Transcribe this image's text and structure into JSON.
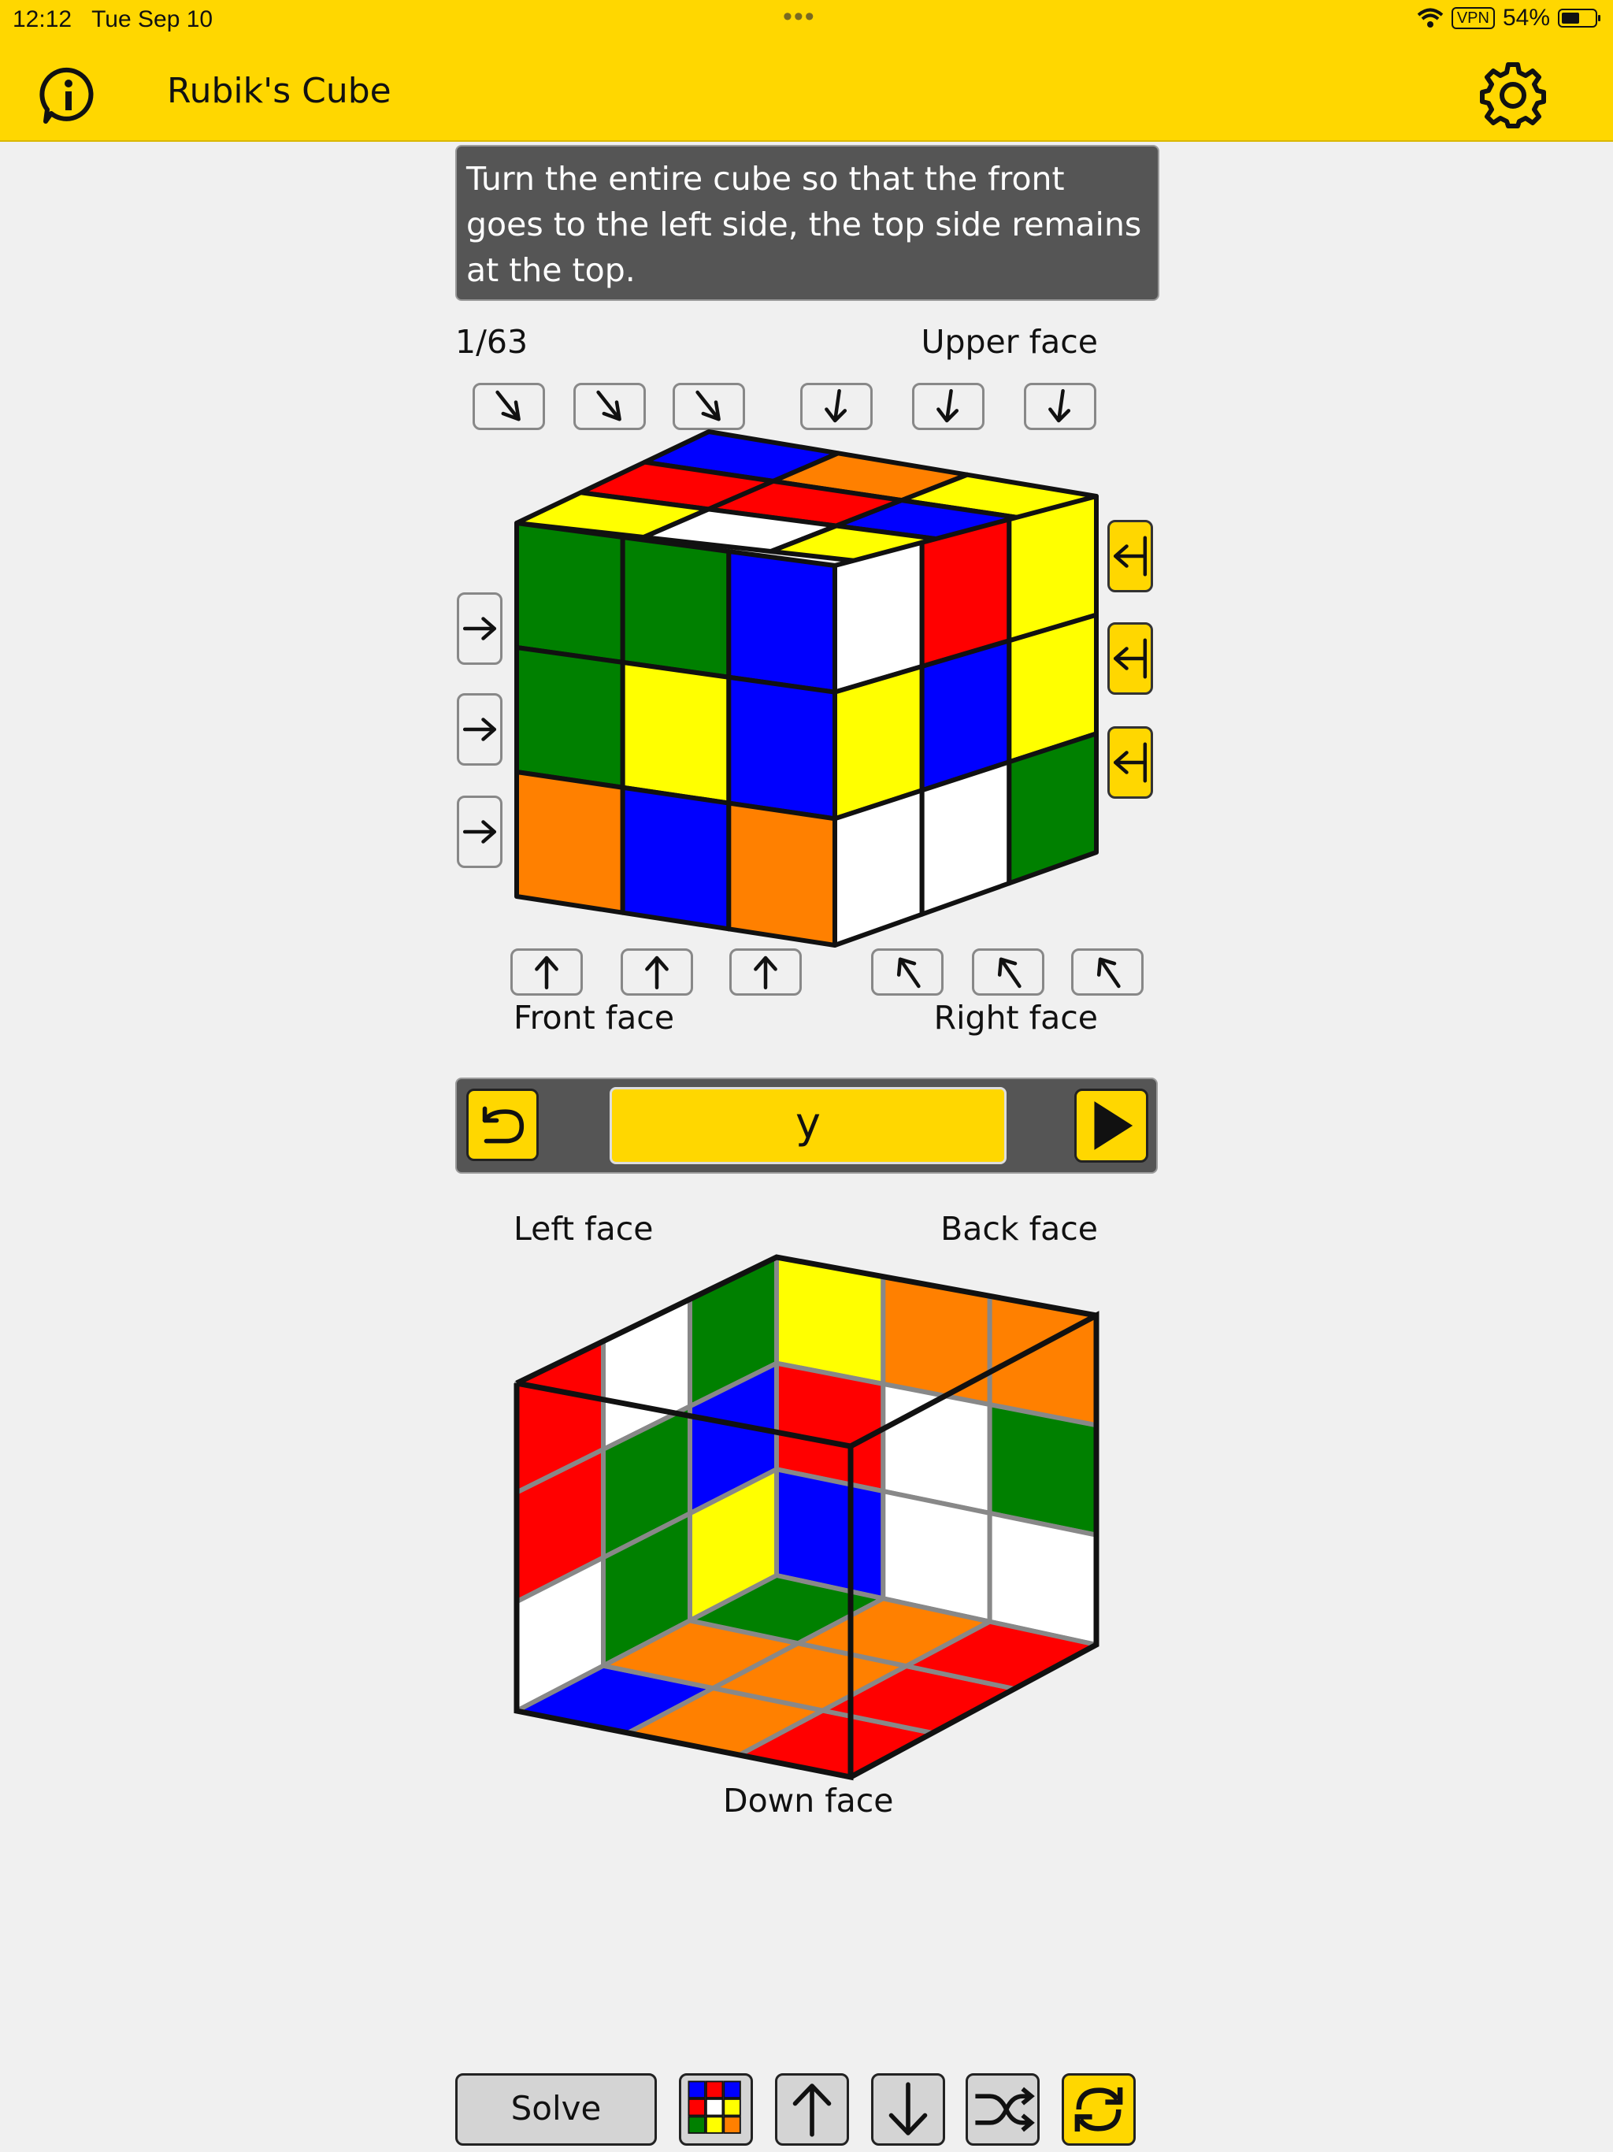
{
  "status": {
    "time": "12:12",
    "date": "Tue Sep 10",
    "vpn": "VPN",
    "battery": "54%",
    "battery_level": 0.54
  },
  "app": {
    "title": "Rubik's Cube",
    "info_icon": "info-icon",
    "settings_icon": "gear-icon"
  },
  "hint": "Turn the entire cube so that the front goes to the left side, the top side remains at the top.",
  "step": "1/63",
  "labels": {
    "upper": "Upper face",
    "front": "Front face",
    "right": "Right face",
    "left": "Left face",
    "back": "Back face",
    "down": "Down face"
  },
  "move": {
    "current": "y"
  },
  "bottom": {
    "solve_label": "Solve"
  },
  "colors": {
    "accent": "#ffd700",
    "W": "#ffffff",
    "Y": "#ffff00",
    "R": "#ff0000",
    "O": "#ff8000",
    "B": "#0000ff",
    "G": "#008000"
  },
  "cube": {
    "up": [
      [
        "B",
        "O",
        "Y"
      ],
      [
        "R",
        "R",
        "B"
      ],
      [
        "Y",
        "W",
        "Y"
      ]
    ],
    "front": [
      [
        "G",
        "G",
        "B"
      ],
      [
        "G",
        "Y",
        "B"
      ],
      [
        "O",
        "B",
        "O"
      ]
    ],
    "right": [
      [
        "W",
        "R",
        "Y"
      ],
      [
        "Y",
        "B",
        "Y"
      ],
      [
        "W",
        "W",
        "G"
      ]
    ],
    "left": [
      [
        "R",
        "W",
        "G"
      ],
      [
        "R",
        "G",
        "B"
      ],
      [
        "W",
        "G",
        "Y"
      ]
    ],
    "back": [
      [
        "Y",
        "O",
        "O"
      ],
      [
        "R",
        "W",
        "G"
      ],
      [
        "B",
        "W",
        "W"
      ]
    ],
    "down": [
      [
        "B",
        "O",
        "G"
      ],
      [
        "O",
        "O",
        "O"
      ],
      [
        "R",
        "R",
        "R"
      ]
    ]
  }
}
